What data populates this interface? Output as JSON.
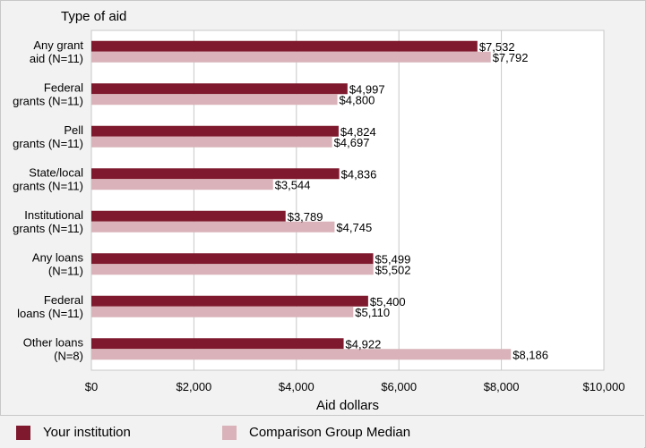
{
  "chart_data": {
    "type": "bar",
    "orientation": "horizontal",
    "title": "Type of aid",
    "xlabel": "Aid dollars",
    "xlim": [
      0,
      10000
    ],
    "xticks": [
      "$0",
      "$2,000",
      "$4,000",
      "$6,000",
      "$8,000",
      "$10,000"
    ],
    "categories": [
      [
        "Any grant",
        "aid (N=11)"
      ],
      [
        "Federal",
        "grants (N=11)"
      ],
      [
        "Pell",
        "grants (N=11)"
      ],
      [
        "State/local",
        "grants (N=11)"
      ],
      [
        "Institutional",
        "grants (N=11)"
      ],
      [
        "Any loans",
        "(N=11)"
      ],
      [
        "Federal",
        "loans (N=11)"
      ],
      [
        "Other loans",
        "(N=8)"
      ]
    ],
    "series": [
      {
        "name": "Your institution",
        "color": "#7f1a2e",
        "values": [
          7532,
          4997,
          4824,
          4836,
          3789,
          5499,
          5400,
          4922
        ],
        "labels": [
          "$7,532",
          "$4,997",
          "$4,824",
          "$4,836",
          "$3,789",
          "$5,499",
          "$5,400",
          "$4,922"
        ]
      },
      {
        "name": "Comparison Group Median",
        "color": "#d9b3b9",
        "values": [
          7792,
          4800,
          4697,
          3544,
          4745,
          5502,
          5110,
          8186
        ],
        "labels": [
          "$7,792",
          "$4,800",
          "$4,697",
          "$3,544",
          "$4,745",
          "$5,502",
          "$5,110",
          "$8,186"
        ]
      }
    ],
    "grid": true,
    "legend": "bottom"
  }
}
